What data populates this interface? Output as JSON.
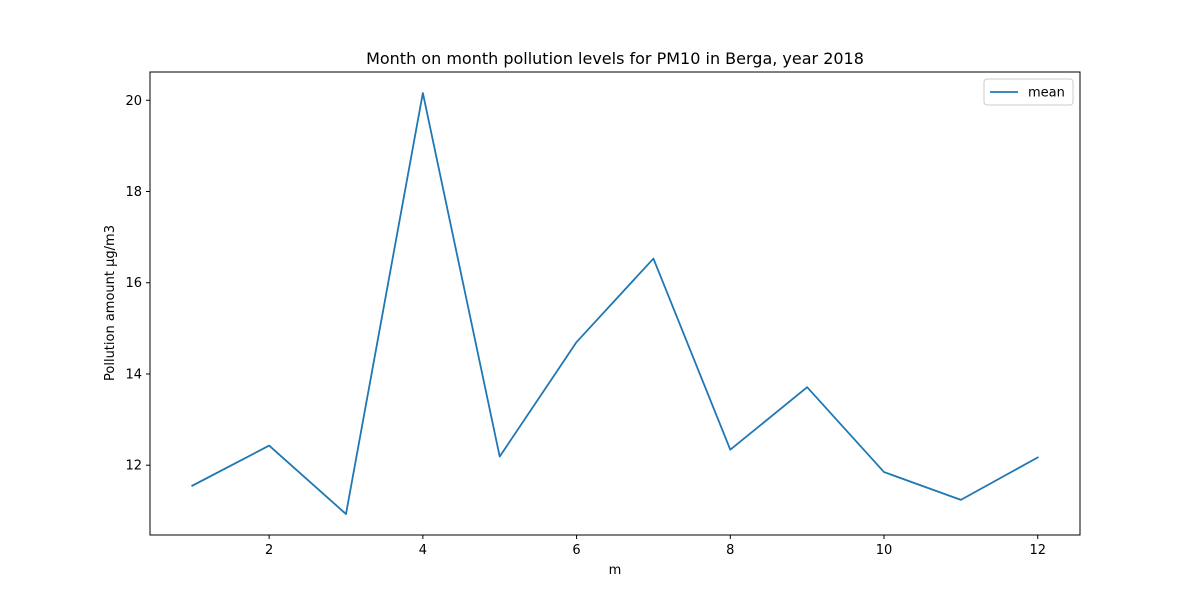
{
  "chart_data": {
    "type": "line",
    "title": "Month on month pollution levels for PM10 in Berga, year 2018",
    "xlabel": "m",
    "ylabel": "Pollution amount µg/m3",
    "x": [
      1,
      2,
      3,
      4,
      5,
      6,
      7,
      8,
      9,
      10,
      11,
      12
    ],
    "series": [
      {
        "name": "mean",
        "color": "#1f77b4",
        "values": [
          11.55,
          12.43,
          10.93,
          20.16,
          12.19,
          14.7,
          16.53,
          12.34,
          13.71,
          11.85,
          11.24,
          12.17
        ]
      }
    ],
    "xlim": [
      0.45,
      12.55
    ],
    "ylim": [
      10.47,
      20.62
    ],
    "xticks": [
      2,
      4,
      6,
      8,
      10,
      12
    ],
    "xtick_labels": [
      "2",
      "4",
      "6",
      "8",
      "10",
      "12"
    ],
    "yticks": [
      12,
      14,
      16,
      18,
      20
    ],
    "ytick_labels": [
      "12",
      "14",
      "16",
      "18",
      "20"
    ],
    "grid": false,
    "legend_position": "upper right"
  }
}
